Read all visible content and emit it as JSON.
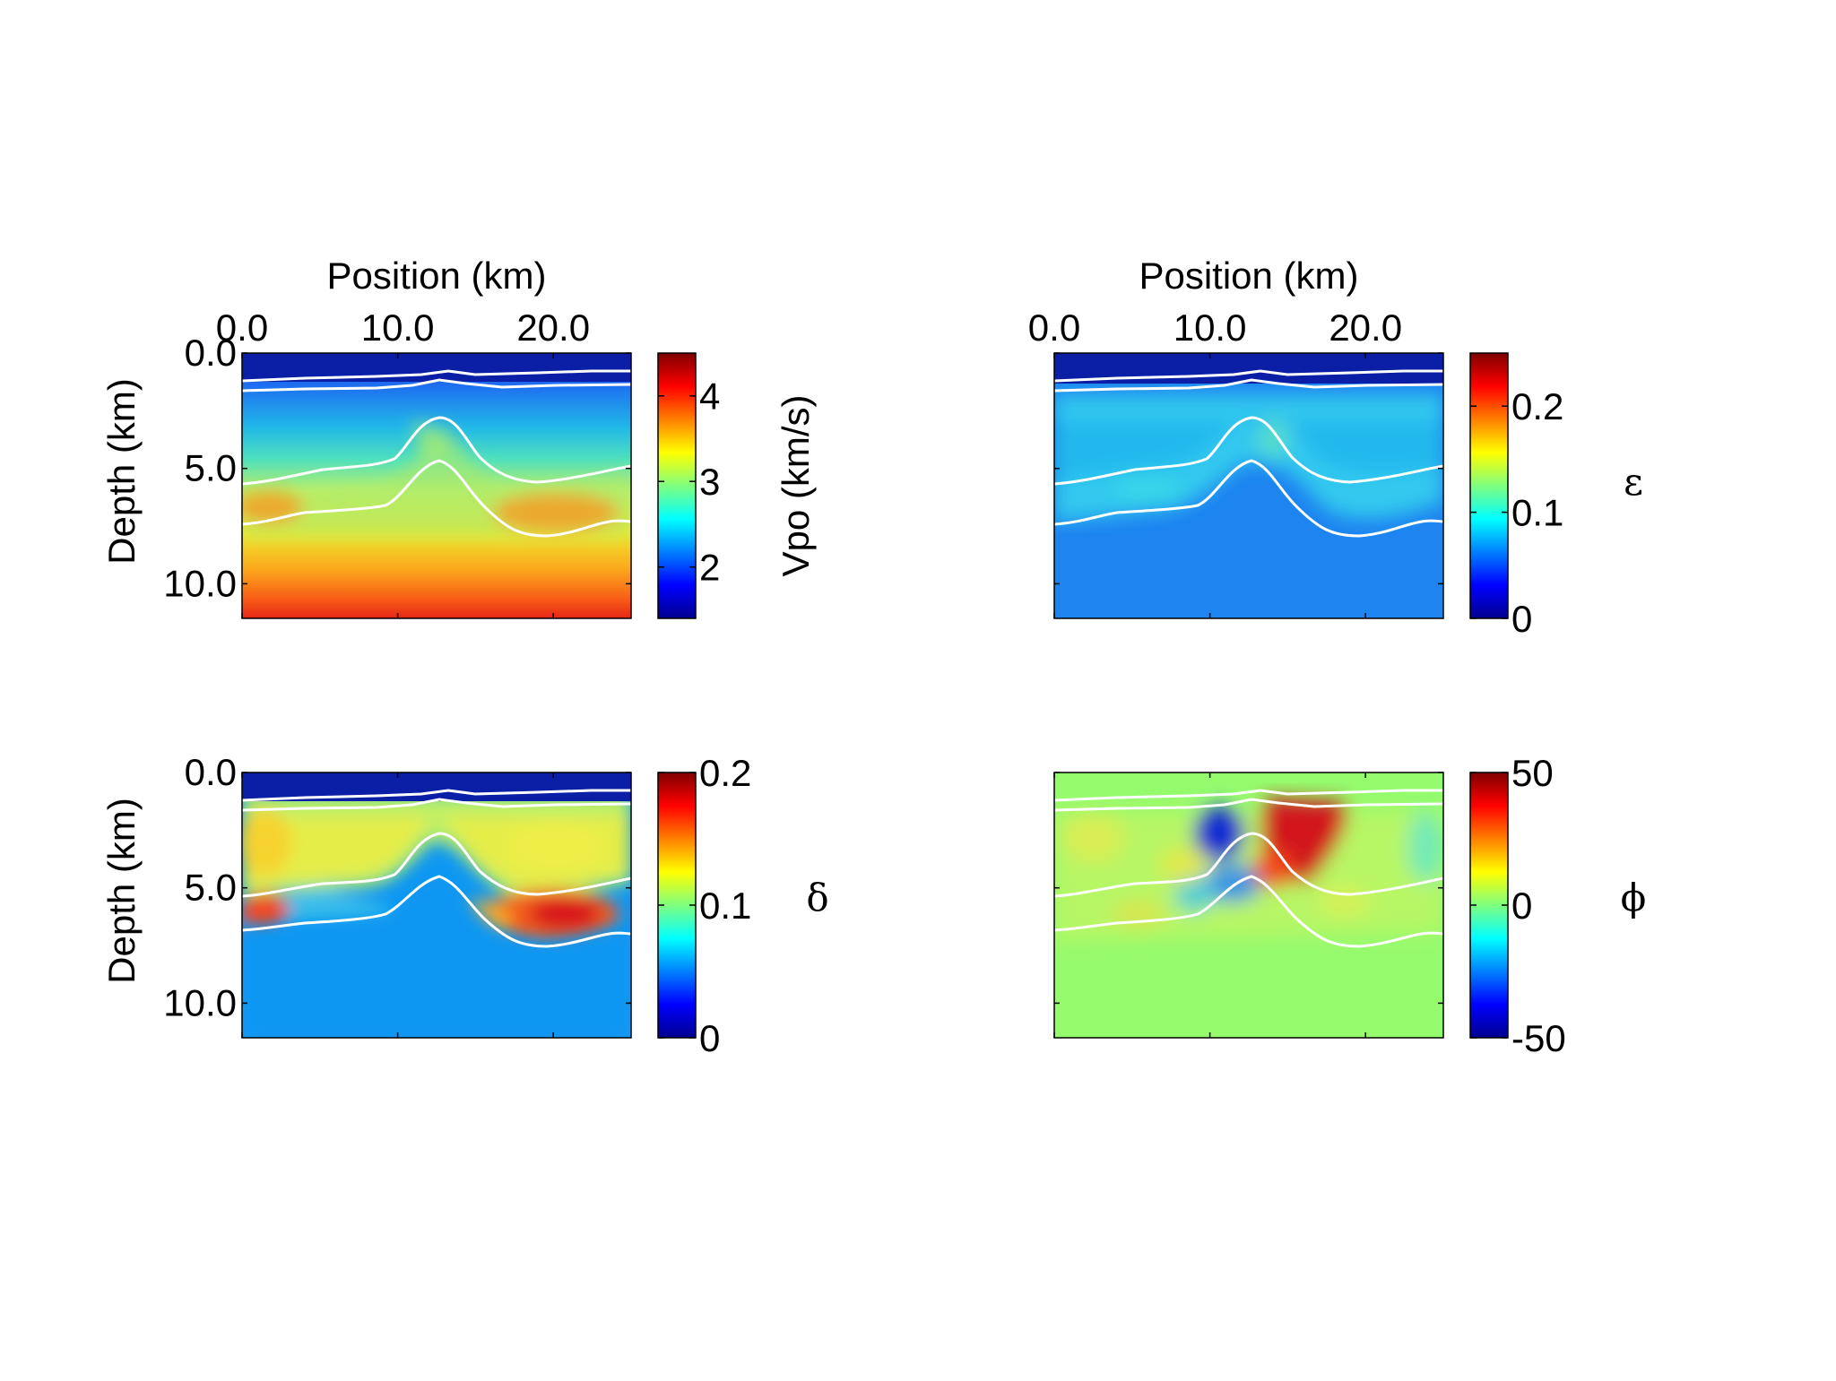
{
  "figure": {
    "x_axis_label": "Position (km)",
    "y_axis_label": "Depth (km)",
    "x_tick_labels": [
      "0.0",
      "10.0",
      "20.0"
    ],
    "y_tick_labels": [
      "0.0",
      "5.0",
      "10.0"
    ]
  },
  "chart_data": [
    {
      "type": "heatmap",
      "id": "vpo",
      "xlabel": "Position (km)",
      "ylabel": "Depth (km)",
      "xlim": [
        0,
        25
      ],
      "ylim": [
        0,
        11.5
      ],
      "x_ticks": [
        0,
        10,
        20
      ],
      "y_ticks": [
        0,
        5,
        10
      ],
      "show_x_axis": true,
      "show_y_axis": true,
      "colorbar": {
        "label": "Vpo (km/s)",
        "min": 1.4,
        "max": 4.5,
        "ticks": [
          2,
          3,
          4
        ],
        "tick_labels": [
          "2",
          "3",
          "4"
        ]
      },
      "colormap": "jet",
      "interface_lines_color": "#ffffff"
    },
    {
      "type": "heatmap",
      "id": "epsilon",
      "xlabel": "Position (km)",
      "ylabel": "",
      "xlim": [
        0,
        25
      ],
      "ylim": [
        0,
        11.5
      ],
      "x_ticks": [
        0,
        10,
        20
      ],
      "show_x_axis": true,
      "show_y_axis": false,
      "colorbar": {
        "label": "ε",
        "min": 0,
        "max": 0.25,
        "ticks": [
          0,
          0.1,
          0.2
        ],
        "tick_labels": [
          "0",
          "0.1",
          "0.2"
        ]
      },
      "colormap": "jet",
      "interface_lines_color": "#ffffff"
    },
    {
      "type": "heatmap",
      "id": "delta",
      "xlabel": "",
      "ylabel": "Depth (km)",
      "xlim": [
        0,
        25
      ],
      "ylim": [
        0,
        11.5
      ],
      "y_ticks": [
        0,
        5,
        10
      ],
      "show_x_axis": false,
      "show_y_axis": true,
      "colorbar": {
        "label": "δ",
        "min": 0,
        "max": 0.2,
        "ticks": [
          0,
          0.1,
          0.2
        ],
        "tick_labels": [
          "0",
          "0.1",
          "0.2"
        ]
      },
      "colormap": "jet",
      "interface_lines_color": "#ffffff"
    },
    {
      "type": "heatmap",
      "id": "phi",
      "xlabel": "",
      "ylabel": "",
      "xlim": [
        0,
        25
      ],
      "ylim": [
        0,
        11.5
      ],
      "show_x_axis": false,
      "show_y_axis": false,
      "colorbar": {
        "label": "ϕ",
        "min": -50,
        "max": 50,
        "ticks": [
          -50,
          0,
          50
        ],
        "tick_labels": [
          "-50",
          "0",
          "50"
        ]
      },
      "colormap": "jet",
      "interface_lines_color": "#ffffff"
    }
  ]
}
